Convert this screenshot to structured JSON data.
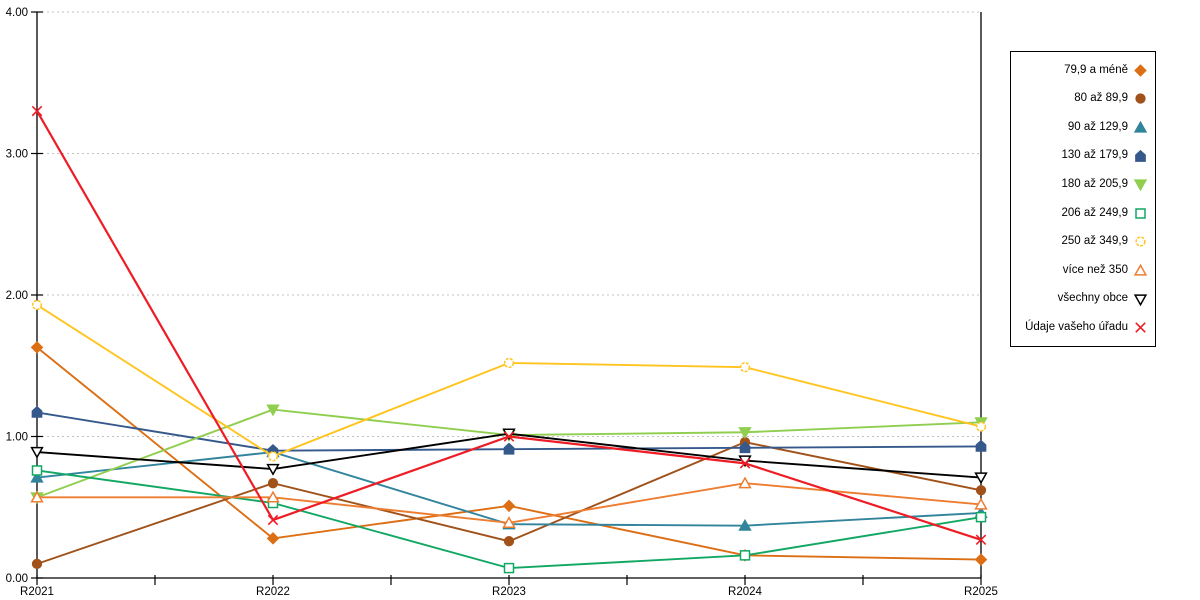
{
  "chart_data": {
    "type": "line",
    "title": "",
    "xlabel": "",
    "ylabel": "",
    "categories": [
      "R2021",
      "R2022",
      "R2023",
      "R2024",
      "R2025"
    ],
    "ylim": [
      0,
      4
    ],
    "yticks": [
      "0.00",
      "1.00",
      "2.00",
      "3.00",
      "4.00"
    ],
    "grid": "horizontal-dashed",
    "grid_color": "#C3C3C3",
    "axis_color": "#000000",
    "legend_position": "right",
    "series": [
      {
        "name": "79,9 a méně",
        "color": "#DC6E14",
        "marker": "diamond",
        "fill": "solid",
        "values": [
          1.63,
          0.28,
          0.51,
          0.16,
          0.13
        ]
      },
      {
        "name": "80 až 89,9",
        "color": "#A0521A",
        "marker": "circle",
        "fill": "solid",
        "values": [
          0.1,
          0.67,
          0.26,
          0.96,
          0.62
        ]
      },
      {
        "name": "90 až 129,9",
        "color": "#31849B",
        "marker": "triangle-up",
        "fill": "solid",
        "values": [
          0.71,
          0.89,
          0.38,
          0.37,
          0.46
        ]
      },
      {
        "name": "130 až 179,9",
        "color": "#36598C",
        "marker": "pentagon",
        "fill": "solid",
        "values": [
          1.17,
          0.9,
          0.91,
          0.92,
          0.93
        ]
      },
      {
        "name": "180 až 205,9",
        "color": "#8FCE4E",
        "marker": "triangle-down",
        "fill": "solid",
        "values": [
          0.57,
          1.19,
          1.01,
          1.03,
          1.1
        ]
      },
      {
        "name": "206 až 249,9",
        "color": "#12A863",
        "marker": "square",
        "fill": "open",
        "values": [
          0.76,
          0.53,
          0.07,
          0.16,
          0.43
        ]
      },
      {
        "name": "250 až 349,9",
        "color": "#FFC41E",
        "marker": "circle-dashed",
        "fill": "open",
        "values": [
          1.93,
          0.86,
          1.52,
          1.49,
          1.07
        ]
      },
      {
        "name": "více než 350",
        "color": "#ED7D31",
        "marker": "triangle-up",
        "fill": "open",
        "values": [
          0.57,
          0.57,
          0.39,
          0.67,
          0.52
        ]
      },
      {
        "name": "všechny obce",
        "color": "#000000",
        "marker": "triangle-down",
        "fill": "open",
        "values": [
          0.89,
          0.77,
          1.02,
          0.83,
          0.71
        ]
      },
      {
        "name": "Údaje vašeho úřadu",
        "color": "#EE1C25",
        "marker": "x",
        "fill": "open",
        "values": [
          3.3,
          0.41,
          1.0,
          0.81,
          0.27
        ]
      }
    ]
  }
}
